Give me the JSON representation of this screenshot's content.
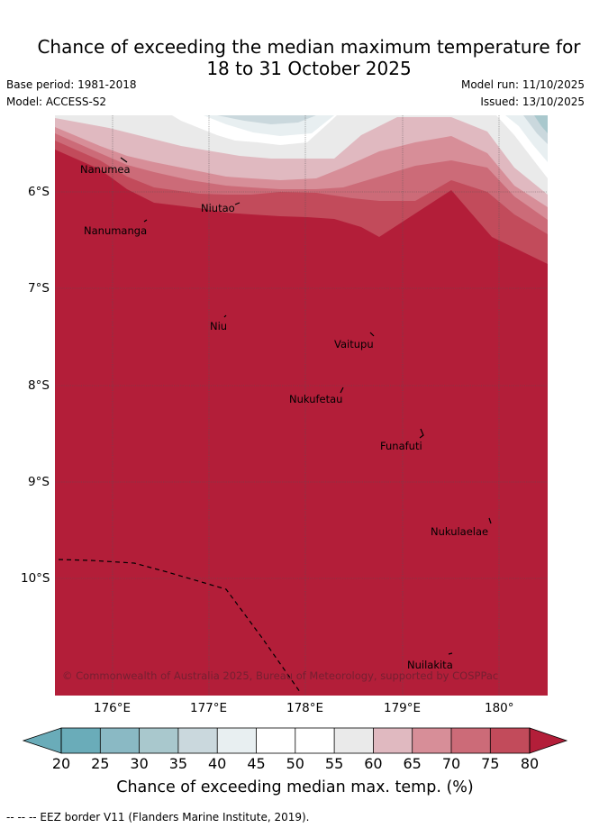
{
  "title": {
    "line1": "Chance of exceeding the median maximum temperature for",
    "line2": "18 to 31 October 2025"
  },
  "meta": {
    "base_period": "Base period: 1981-2018",
    "model": "Model: ACCESS-S2",
    "model_run": "Model run: 11/10/2025",
    "issued": "Issued: 13/10/2025"
  },
  "map": {
    "lon_labels": [
      "176°E",
      "177°E",
      "178°E",
      "179°E",
      "180°"
    ],
    "lat_labels": [
      "6°S",
      "7°S",
      "8°S",
      "9°S",
      "10°S"
    ],
    "places": [
      {
        "name": "Nanumea"
      },
      {
        "name": "Nanumanga"
      },
      {
        "name": "Niutao"
      },
      {
        "name": "Niu"
      },
      {
        "name": "Vaitupu"
      },
      {
        "name": "Nukufetau"
      },
      {
        "name": "Funafuti"
      },
      {
        "name": "Nukulaelae"
      },
      {
        "name": "Nuilakita"
      }
    ],
    "copyright": "© Commonwealth of Australia 2025, Bureau of Meteorology, supported by COSPPac",
    "colors": {
      "c20_25": "#6aacb9",
      "c25_30": "#8ab9c4",
      "c30_35": "#a9c8cd",
      "c35_40": "#cad8dd",
      "c40_45": "#e8eff1",
      "c45_50": "#ffffff",
      "c50_55": "#ffffff",
      "c55_60": "#eaeaea",
      "c60_65": "#e0b9c0",
      "c65_70": "#d78e98",
      "c70_75": "#cc6b78",
      "c75_80": "#c24b5b",
      "c80_plus": "#b31e39"
    }
  },
  "colorbar": {
    "ticks": [
      "20",
      "25",
      "30",
      "35",
      "40",
      "45",
      "50",
      "55",
      "60",
      "65",
      "70",
      "75",
      "80"
    ],
    "label": "Chance of exceeding median max. temp. (%)"
  },
  "footnote": "--  --  -- EEZ border V11 (Flanders Marine Institute, 2019)."
}
